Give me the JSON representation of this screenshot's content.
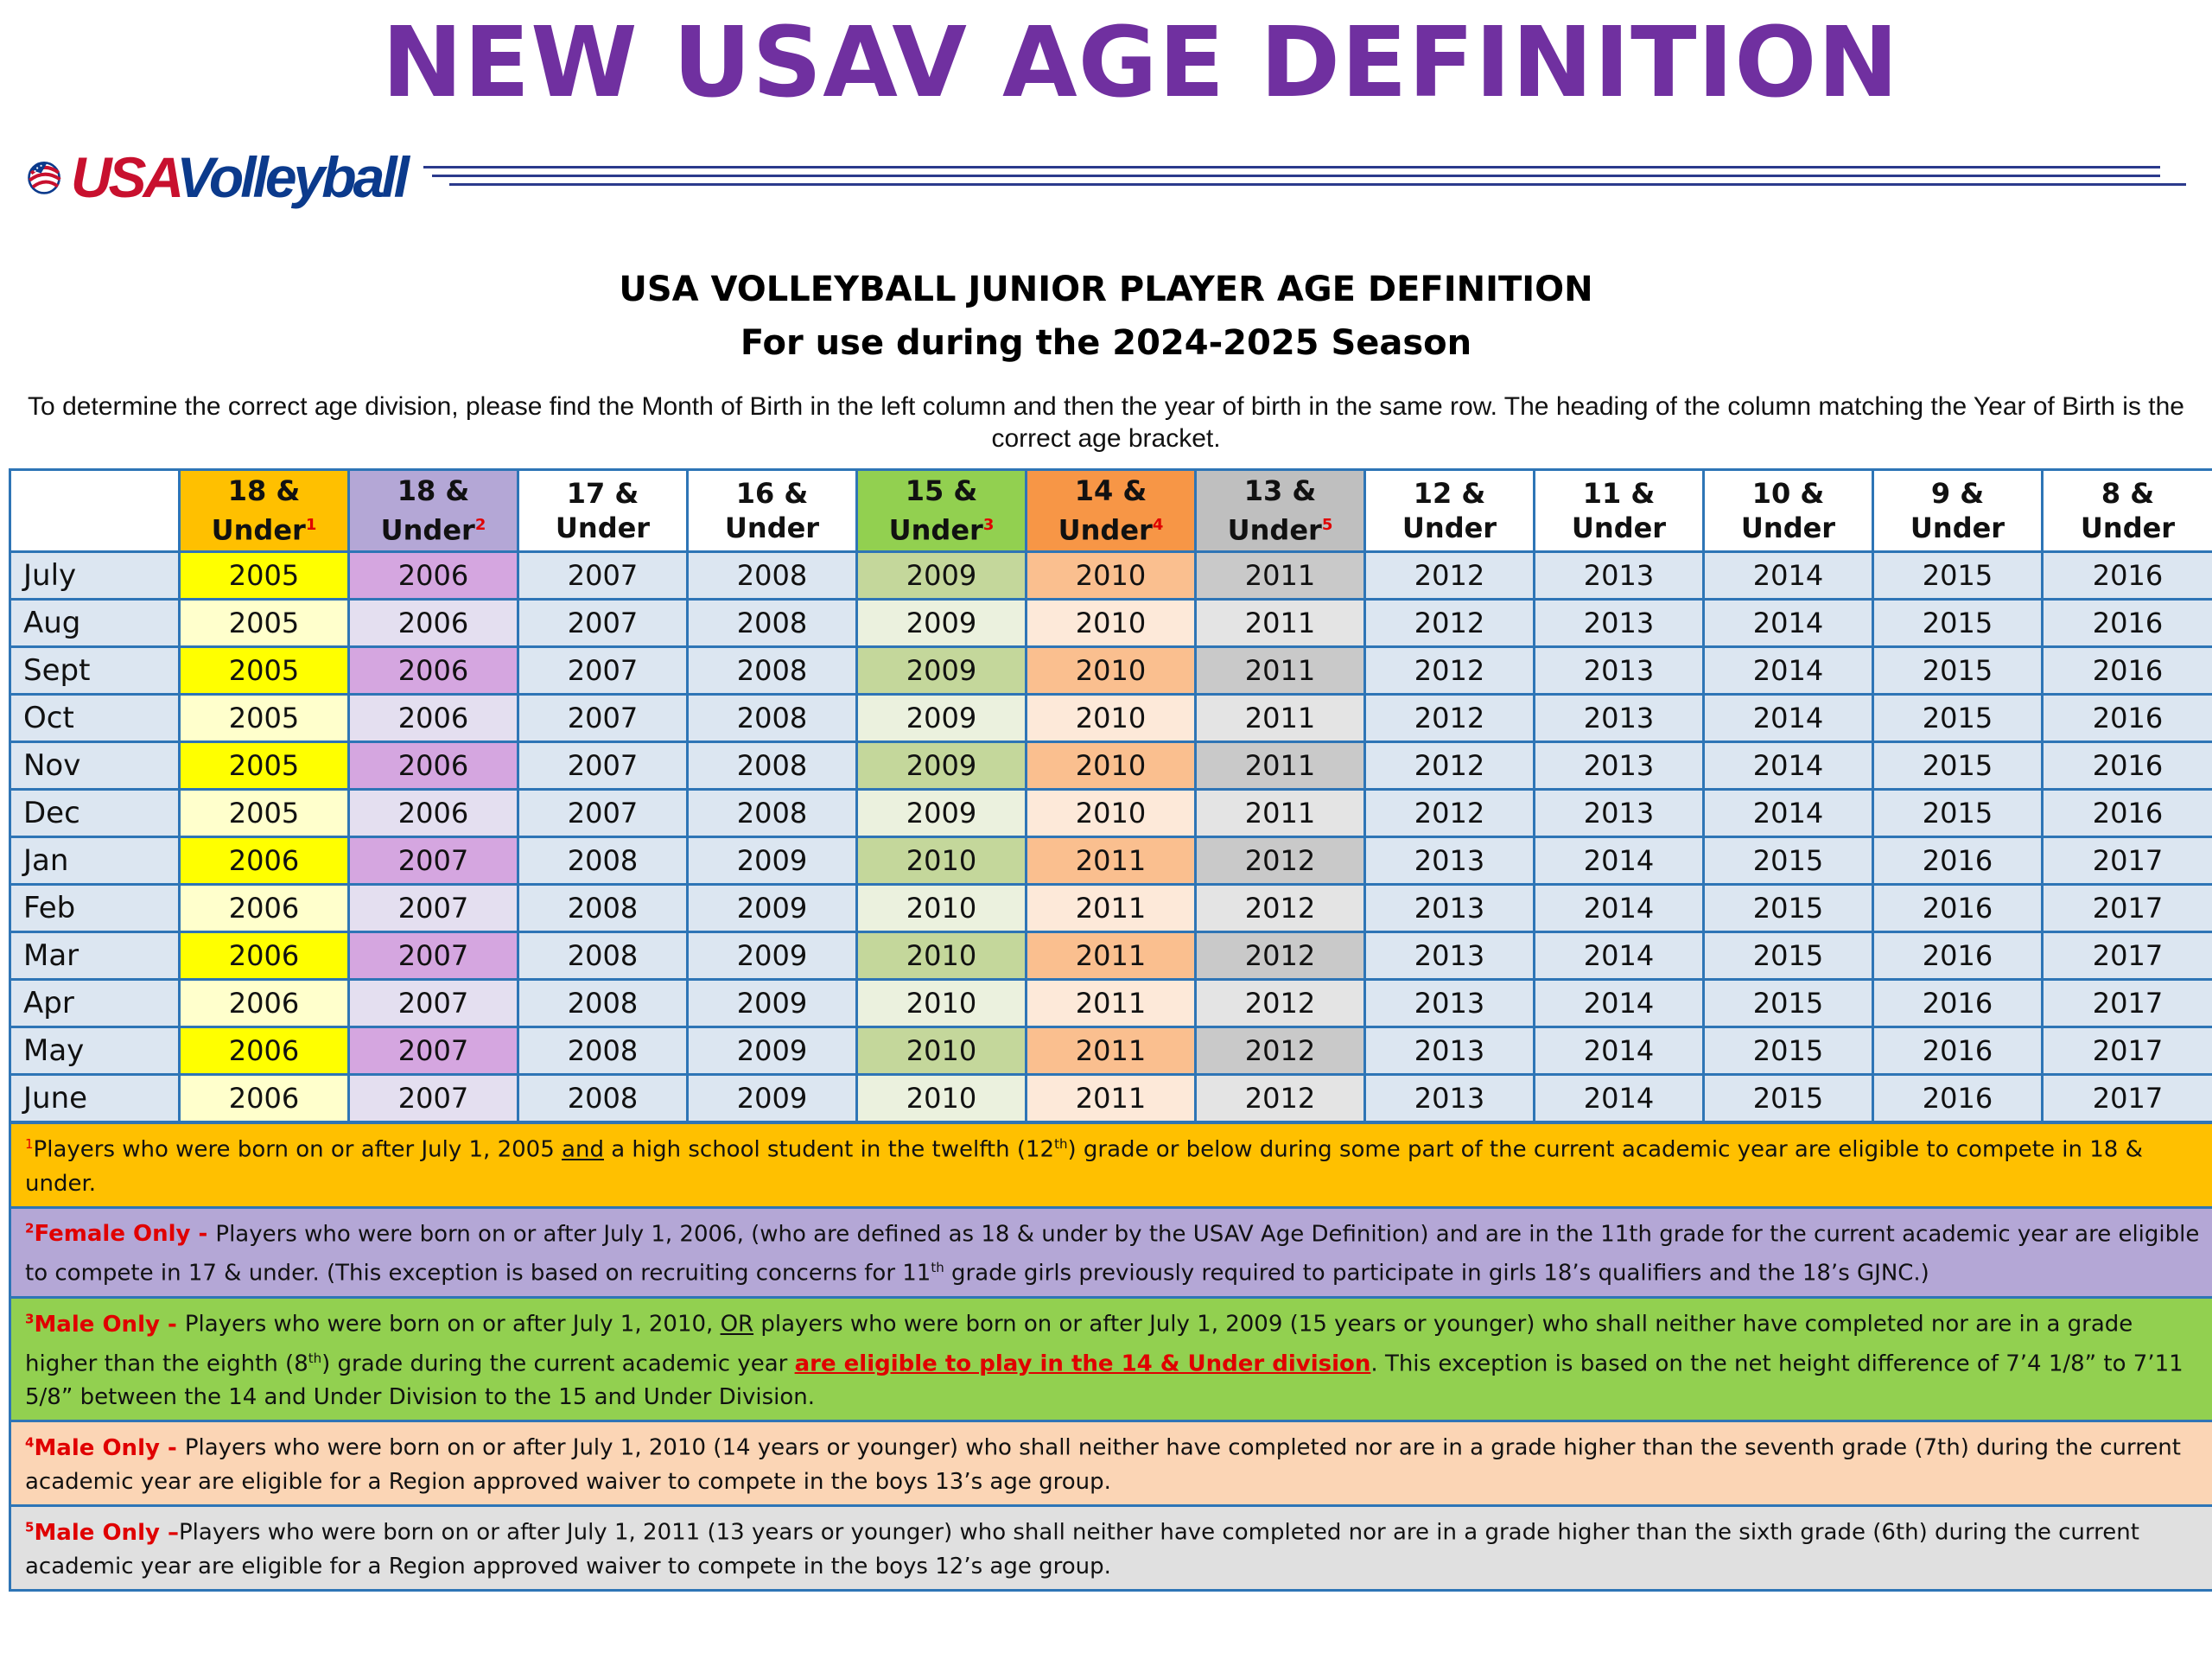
{
  "page_title": "NEW USAV AGE DEFINITION",
  "logo": {
    "usa": "USA",
    "volleyball": "Volleyball"
  },
  "subtitle_line1": "USA VOLLEYBALL JUNIOR PLAYER AGE DEFINITION",
  "subtitle_line2": "For use during the 2024-2025 Season",
  "instructions": "To determine the correct age division, please find the Month of Birth in the left column and then the year of birth in the same row. The heading of the column matching the Year of Birth is the correct age bracket.",
  "colors": {
    "title_purple": "#7030a0",
    "col18_head": "#ffc000",
    "col18_hi": "#ffff00",
    "col18_lo": "#ffffcc",
    "col18b_head": "#b4a7d6",
    "col18b_hi": "#d5a6e0",
    "col18b_lo": "#e4dff0",
    "plain_head": "#ffffff",
    "plain_cell": "#dce6f1",
    "col15_head": "#92d050",
    "col15_hi": "#c4d79b",
    "col15_lo": "#ebf1de",
    "col14_head": "#f79646",
    "col14_hi": "#fabf8f",
    "col14_lo": "#fde9d9",
    "col13_head": "#bfbfbf",
    "col13_hi": "#c9c9c9",
    "col13_lo": "#e4e4e4",
    "note1": "#ffc000",
    "note2": "#b4a7d6",
    "note3": "#92d050",
    "note4": "#fbd5b5",
    "note5": "#e0e0e0"
  },
  "table": {
    "headers": [
      {
        "line1": "18 &",
        "line2": "Under",
        "sup": "1"
      },
      {
        "line1": "18 &",
        "line2": "Under",
        "sup": "2"
      },
      {
        "line1": "17 &",
        "line2": "Under",
        "sup": ""
      },
      {
        "line1": "16 &",
        "line2": "Under",
        "sup": ""
      },
      {
        "line1": "15 &",
        "line2": "Under",
        "sup": "3"
      },
      {
        "line1": "14 &",
        "line2": "Under",
        "sup": "4"
      },
      {
        "line1": "13 &",
        "line2": "Under",
        "sup": "5"
      },
      {
        "line1": "12 &",
        "line2": "Under",
        "sup": ""
      },
      {
        "line1": "11 &",
        "line2": "Under",
        "sup": ""
      },
      {
        "line1": "10 &",
        "line2": "Under",
        "sup": ""
      },
      {
        "line1": "9 &",
        "line2": "Under",
        "sup": ""
      },
      {
        "line1": "8 &",
        "line2": "Under",
        "sup": ""
      }
    ],
    "rows": [
      {
        "month": "July",
        "years": [
          "2005",
          "2006",
          "2007",
          "2008",
          "2009",
          "2010",
          "2011",
          "2012",
          "2013",
          "2014",
          "2015",
          "2016"
        ]
      },
      {
        "month": "Aug",
        "years": [
          "2005",
          "2006",
          "2007",
          "2008",
          "2009",
          "2010",
          "2011",
          "2012",
          "2013",
          "2014",
          "2015",
          "2016"
        ]
      },
      {
        "month": "Sept",
        "years": [
          "2005",
          "2006",
          "2007",
          "2008",
          "2009",
          "2010",
          "2011",
          "2012",
          "2013",
          "2014",
          "2015",
          "2016"
        ]
      },
      {
        "month": "Oct",
        "years": [
          "2005",
          "2006",
          "2007",
          "2008",
          "2009",
          "2010",
          "2011",
          "2012",
          "2013",
          "2014",
          "2015",
          "2016"
        ]
      },
      {
        "month": "Nov",
        "years": [
          "2005",
          "2006",
          "2007",
          "2008",
          "2009",
          "2010",
          "2011",
          "2012",
          "2013",
          "2014",
          "2015",
          "2016"
        ]
      },
      {
        "month": "Dec",
        "years": [
          "2005",
          "2006",
          "2007",
          "2008",
          "2009",
          "2010",
          "2011",
          "2012",
          "2013",
          "2014",
          "2015",
          "2016"
        ]
      },
      {
        "month": "Jan",
        "years": [
          "2006",
          "2007",
          "2008",
          "2009",
          "2010",
          "2011",
          "2012",
          "2013",
          "2014",
          "2015",
          "2016",
          "2017"
        ]
      },
      {
        "month": "Feb",
        "years": [
          "2006",
          "2007",
          "2008",
          "2009",
          "2010",
          "2011",
          "2012",
          "2013",
          "2014",
          "2015",
          "2016",
          "2017"
        ]
      },
      {
        "month": "Mar",
        "years": [
          "2006",
          "2007",
          "2008",
          "2009",
          "2010",
          "2011",
          "2012",
          "2013",
          "2014",
          "2015",
          "2016",
          "2017"
        ]
      },
      {
        "month": "Apr",
        "years": [
          "2006",
          "2007",
          "2008",
          "2009",
          "2010",
          "2011",
          "2012",
          "2013",
          "2014",
          "2015",
          "2016",
          "2017"
        ]
      },
      {
        "month": "May",
        "years": [
          "2006",
          "2007",
          "2008",
          "2009",
          "2010",
          "2011",
          "2012",
          "2013",
          "2014",
          "2015",
          "2016",
          "2017"
        ]
      },
      {
        "month": "June",
        "years": [
          "2006",
          "2007",
          "2008",
          "2009",
          "2010",
          "2011",
          "2012",
          "2013",
          "2014",
          "2015",
          "2016",
          "2017"
        ]
      }
    ]
  },
  "notes": {
    "n1": {
      "num": "1",
      "a": "Players who were born on or after July 1, 2005 ",
      "b": "and",
      "c": " a high school student in the twelfth (12",
      "c_sup": "th",
      "d": ") grade or below during some part of the current academic year are eligible to compete in 18 & under."
    },
    "n2": {
      "num": "2",
      "tag": "Female Only - ",
      "a": "Players who were born on or after July 1, 2006, (who are defined as 18 & under by the USAV Age Definition) and are in the 11th grade for the current academic year are eligible to compete in 17 & under.  (This exception is based on recruiting concerns for 11",
      "a_sup": "th",
      "b": " grade girls previously required to participate in girls 18’s qualifiers and the 18’s GJNC.)"
    },
    "n3": {
      "num": "3",
      "tag": "Male Only - ",
      "a": "Players who were born on or after July 1, 2010, ",
      "b": "OR",
      "c": " players who were born on or after July 1, 2009 (15 years or younger) who shall neither have completed nor are in a grade higher than the eighth (8",
      "c_sup": "th",
      "d": ") grade during the current academic year ",
      "e": "are eligible to play in the 14 & Under division",
      "f": ".  This exception is based on the net height difference of 7’4 1/8” to 7’11 5/8” between the 14 and Under Division to the 15 and Under Division."
    },
    "n4": {
      "num": "4",
      "tag": "Male Only - ",
      "a": "Players who were born on or after July 1, 2010 (14 years or younger) who shall neither have completed nor are in a grade higher than the seventh grade (7th) during the current academic year are eligible for a Region approved waiver to compete in the boys 13’s age group."
    },
    "n5": {
      "num": "5",
      "tag": "Male Only –",
      "a": "Players who were born on or after July 1, 2011 (13 years or younger) who shall neither have completed nor are in a grade higher than the sixth grade (6th) during the current academic year are eligible for a Region approved waiver to compete in the boys 12’s age group."
    }
  }
}
